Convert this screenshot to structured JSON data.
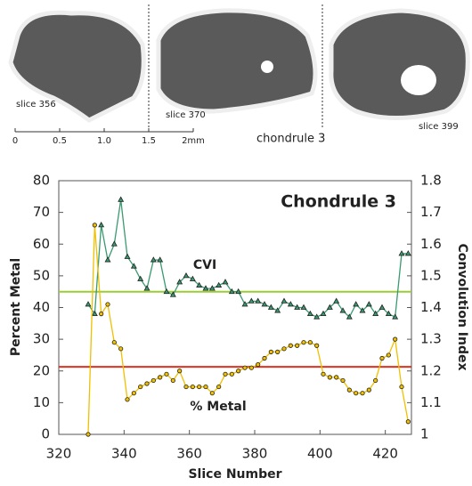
{
  "images": {
    "slices": [
      "slice 356",
      "slice 370",
      "slice 399"
    ],
    "caption": "chondrule 3",
    "scale_labels": [
      "0",
      "0.5",
      "1.0",
      "1.5",
      "2mm"
    ]
  },
  "chart_data": {
    "type": "line",
    "title": "Chondrule 3",
    "x_label": "Slice Number",
    "y_label": "Percent Metal",
    "y2_label": "Convolution Index",
    "xlim": [
      320,
      428
    ],
    "xticks": [
      320,
      340,
      360,
      380,
      400,
      420
    ],
    "ylim": [
      0,
      80
    ],
    "yticks": [
      0,
      10,
      20,
      30,
      40,
      50,
      60,
      70,
      80
    ],
    "y2lim": [
      1,
      1.8
    ],
    "y2ticks": [
      1,
      1.1,
      1.2,
      1.3,
      1.4,
      1.5,
      1.6,
      1.7,
      1.8
    ],
    "x": [
      329,
      331,
      333,
      335,
      337,
      339,
      341,
      343,
      345,
      347,
      349,
      351,
      353,
      355,
      357,
      359,
      361,
      363,
      365,
      367,
      369,
      371,
      373,
      375,
      377,
      379,
      381,
      383,
      385,
      387,
      389,
      391,
      393,
      395,
      397,
      399,
      401,
      403,
      405,
      407,
      409,
      411,
      413,
      415,
      417,
      419,
      421,
      423,
      425,
      427
    ],
    "series": [
      {
        "name": "CVI",
        "axis": "y2",
        "color": "#3a9a70",
        "marker": "triangle",
        "values": [
          1.41,
          1.38,
          1.66,
          1.55,
          1.6,
          1.74,
          1.56,
          1.53,
          1.49,
          1.46,
          1.55,
          1.55,
          1.45,
          1.44,
          1.48,
          1.5,
          1.49,
          1.47,
          1.46,
          1.46,
          1.47,
          1.48,
          1.45,
          1.45,
          1.41,
          1.42,
          1.42,
          1.41,
          1.4,
          1.39,
          1.42,
          1.41,
          1.4,
          1.4,
          1.38,
          1.37,
          1.38,
          1.4,
          1.42,
          1.39,
          1.37,
          1.41,
          1.39,
          1.41,
          1.38,
          1.4,
          1.38,
          1.37,
          1.57,
          1.57
        ]
      },
      {
        "name": "% Metal",
        "axis": "y",
        "color": "#f0c000",
        "marker": "circle",
        "values": [
          0,
          66,
          38,
          41,
          29,
          27,
          11,
          13,
          15,
          16,
          17,
          18,
          19,
          17,
          20,
          15,
          15,
          15,
          15,
          13,
          15,
          19,
          19,
          20,
          21,
          21,
          22,
          24,
          26,
          26,
          27,
          28,
          28,
          29,
          29,
          28,
          19,
          18,
          18,
          17,
          14,
          13,
          13,
          14,
          17,
          24,
          25,
          30,
          15,
          4
        ]
      }
    ],
    "reference_lines": [
      {
        "value": 45,
        "color": "#9acd32"
      },
      {
        "value": 21.3,
        "color": "#e03020"
      }
    ]
  }
}
